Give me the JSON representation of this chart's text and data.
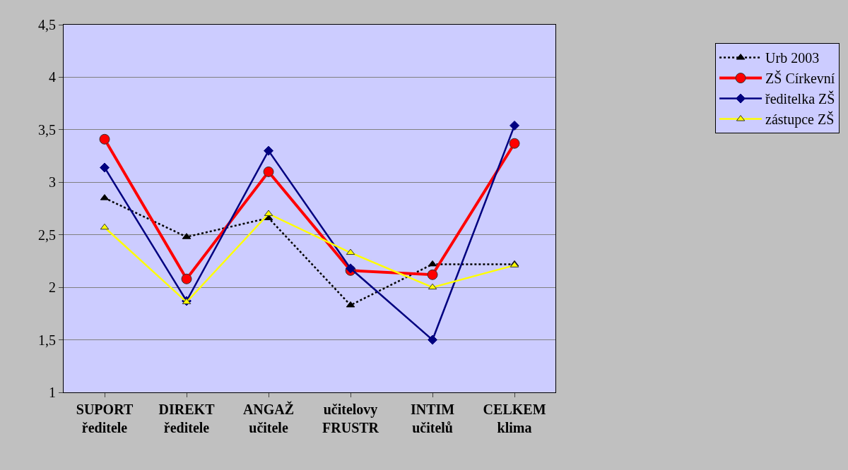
{
  "chart_data": {
    "type": "line",
    "categories": [
      "SUPORT\nředitele",
      "DIREKT\nředitele",
      "ANGAŽ\nučitele",
      "učitelovy\nFRUSTR",
      "INTIM\nučitelů",
      "CELKEM\nklima"
    ],
    "series": [
      {
        "name": "Urb 2003",
        "color": "#000000",
        "marker": "triangle",
        "line_style": "dotted",
        "values": [
          2.85,
          2.48,
          2.66,
          1.83,
          2.22,
          2.22
        ]
      },
      {
        "name": "ZŠ Církevní",
        "color": "#ff0000",
        "marker": "circle",
        "line_style": "solid",
        "values": [
          3.41,
          2.08,
          3.1,
          2.16,
          2.12,
          3.37
        ]
      },
      {
        "name": "ředitelka ZŠ",
        "color": "#000080",
        "marker": "diamond",
        "line_style": "solid",
        "values": [
          3.14,
          1.87,
          3.3,
          2.18,
          1.5,
          3.54
        ]
      },
      {
        "name": "zástupce ZŠ",
        "color": "#ffff00",
        "marker": "triangle",
        "line_style": "solid",
        "values": [
          2.57,
          1.86,
          2.7,
          2.33,
          2.0,
          2.21
        ]
      }
    ],
    "ylim": [
      1,
      4.5
    ],
    "yticks": [
      {
        "value": 1,
        "label": "1"
      },
      {
        "value": 1.5,
        "label": "1,5"
      },
      {
        "value": 2,
        "label": "2"
      },
      {
        "value": 2.5,
        "label": "2,5"
      },
      {
        "value": 3,
        "label": "3"
      },
      {
        "value": 3.5,
        "label": "3,5"
      },
      {
        "value": 4,
        "label": "4"
      },
      {
        "value": 4.5,
        "label": "4,5"
      }
    ],
    "grid": "y",
    "legend": "right"
  }
}
